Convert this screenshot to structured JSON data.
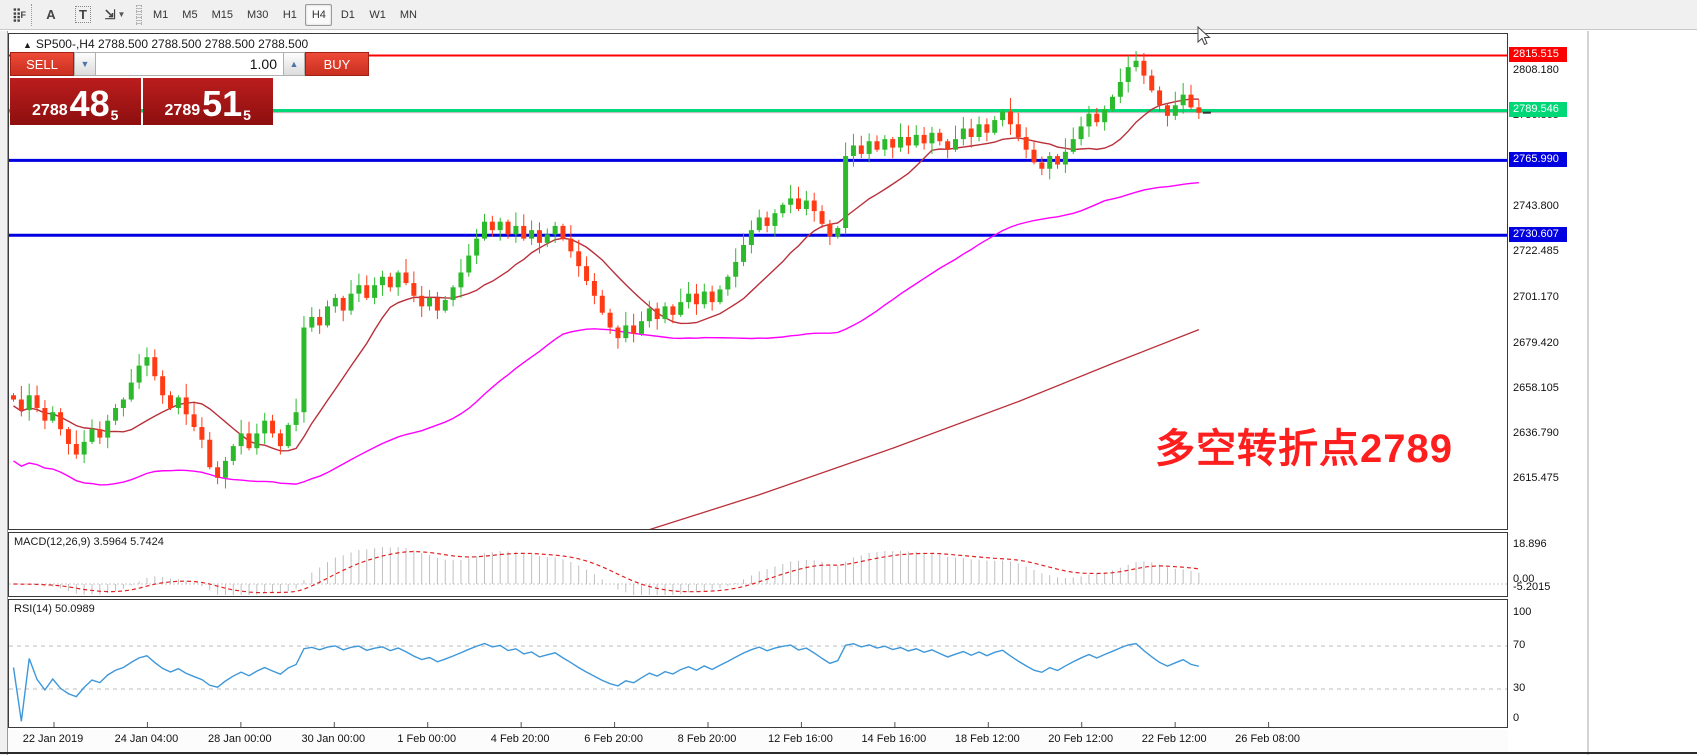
{
  "toolbar": {
    "icons": [
      {
        "name": "indicator-grid-icon",
        "glyph": "F"
      },
      {
        "name": "text-label-icon",
        "glyph": "A"
      },
      {
        "name": "text-box-icon",
        "glyph": "T"
      },
      {
        "name": "draw-arrows-icon",
        "glyph": "⇲"
      }
    ],
    "timeframes": [
      "M1",
      "M5",
      "M15",
      "M30",
      "H1",
      "H4",
      "D1",
      "W1",
      "MN"
    ],
    "active_timeframe": "H4"
  },
  "chart": {
    "header": "SP500-,H4  2788.500 2788.500 2788.500 2788.500",
    "header_triangle": "▲"
  },
  "trade_panel": {
    "sell_label": "SELL",
    "buy_label": "BUY",
    "volume": "1.00",
    "spin_down": "▼",
    "spin_up": "▲",
    "bid_int": "2788",
    "bid_big": "48",
    "bid_sup": "5",
    "ask_int": "2789",
    "ask_big": "51",
    "ask_sup": "5"
  },
  "annotation": "多空转折点2789",
  "macd_label": "MACD(12,26,9) 3.5964 5.7424",
  "rsi_label": "RSI(14) 50.0989",
  "chart_data": {
    "type": "candlestick",
    "symbol": "SP500-",
    "timeframe": "H4",
    "x_labels": [
      "22 Jan 2019",
      "24 Jan 04:00",
      "28 Jan 00:00",
      "30 Jan 00:00",
      "1 Feb 00:00",
      "4 Feb 20:00",
      "6 Feb 20:00",
      "8 Feb 20:00",
      "12 Feb 16:00",
      "14 Feb 16:00",
      "18 Feb 12:00",
      "20 Feb 12:00",
      "22 Feb 12:00",
      "26 Feb 08:00"
    ],
    "y_ticks": [
      "2808.180",
      "2786.865",
      "2743.800",
      "2722.485",
      "2701.170",
      "2679.420",
      "2658.105",
      "2636.790",
      "2615.475"
    ],
    "price_tags": [
      {
        "label": "2815.515",
        "price": 2815.515,
        "color": "#ff0000"
      },
      {
        "label": "2789.546",
        "price": 2789.546,
        "color": "#00d877"
      },
      {
        "label": "2765.990",
        "price": 2765.99,
        "color": "#0000e0"
      },
      {
        "label": "2730.607",
        "price": 2730.607,
        "color": "#0000e0"
      }
    ],
    "hlines": [
      {
        "price": 2815.515,
        "color": "#ff0000",
        "width": 2
      },
      {
        "price": 2789.546,
        "color": "#00d877",
        "width": 3
      },
      {
        "price": 2788.5,
        "color": "#b4b4b4",
        "width": 1
      },
      {
        "price": 2765.99,
        "color": "#0000e0",
        "width": 3
      },
      {
        "price": 2730.607,
        "color": "#0000e0",
        "width": 3
      }
    ],
    "closes": [
      2653,
      2648,
      2655,
      2649,
      2643,
      2647,
      2639,
      2632,
      2627,
      2633,
      2639,
      2635,
      2643,
      2649,
      2653,
      2661,
      2669,
      2673,
      2664,
      2655,
      2649,
      2654,
      2646,
      2640,
      2634,
      2621,
      2616,
      2624,
      2631,
      2637,
      2630,
      2637,
      2643,
      2637,
      2631,
      2641,
      2647,
      2687,
      2692,
      2688,
      2697,
      2701,
      2695,
      2703,
      2707,
      2701,
      2707,
      2711,
      2706,
      2713,
      2708,
      2702,
      2697,
      2701,
      2695,
      2700,
      2706,
      2713,
      2721,
      2729,
      2737,
      2733,
      2737,
      2731,
      2735,
      2729,
      2733,
      2727,
      2731,
      2735,
      2729,
      2723,
      2716,
      2709,
      2702,
      2694,
      2687,
      2682,
      2688,
      2684,
      2690,
      2696,
      2691,
      2697,
      2693,
      2699,
      2703,
      2698,
      2704,
      2699,
      2705,
      2711,
      2718,
      2726,
      2733,
      2739,
      2735,
      2741,
      2745,
      2748,
      2743,
      2747,
      2742,
      2736,
      2730,
      2734,
      2768,
      2773,
      2769,
      2775,
      2771,
      2776,
      2772,
      2777,
      2773,
      2778,
      2774,
      2779,
      2775,
      2771,
      2776,
      2781,
      2777,
      2783,
      2779,
      2785,
      2789,
      2783,
      2777,
      2771,
      2765,
      2762,
      2768,
      2764,
      2770,
      2776,
      2782,
      2788,
      2784,
      2790,
      2796,
      2803,
      2810,
      2813,
      2806,
      2799,
      2792,
      2787,
      2792,
      2797,
      2791,
      2788.5
    ],
    "moving_averages": [
      {
        "name": "fast-ma",
        "color": "#b8303a",
        "period": 12
      },
      {
        "name": "slow-ma",
        "color": "#ff00ff",
        "period": 34
      },
      {
        "name": "long-ma",
        "color": "#b8303a",
        "keypoints_index_price": [
          [
            78,
            2588
          ],
          [
            95,
            2608
          ],
          [
            112,
            2630
          ],
          [
            128,
            2652
          ],
          [
            140,
            2670
          ],
          [
            151,
            2686
          ]
        ]
      }
    ],
    "macd": {
      "params": "12,26,9",
      "value": 3.5964,
      "signal": 5.7424,
      "axis": [
        "18.896",
        "0.00",
        "-5.2015"
      ],
      "hist_color": "#bfbfbf",
      "signal_color": "#e02222"
    },
    "rsi": {
      "period": 14,
      "value": 50.0989,
      "axis": [
        "100",
        "70",
        "30",
        "0"
      ],
      "levels": [
        70,
        30
      ],
      "color": "#3e97d9"
    },
    "candle_up_color": "#2cba2c",
    "candle_down_color": "#ff3b16"
  }
}
